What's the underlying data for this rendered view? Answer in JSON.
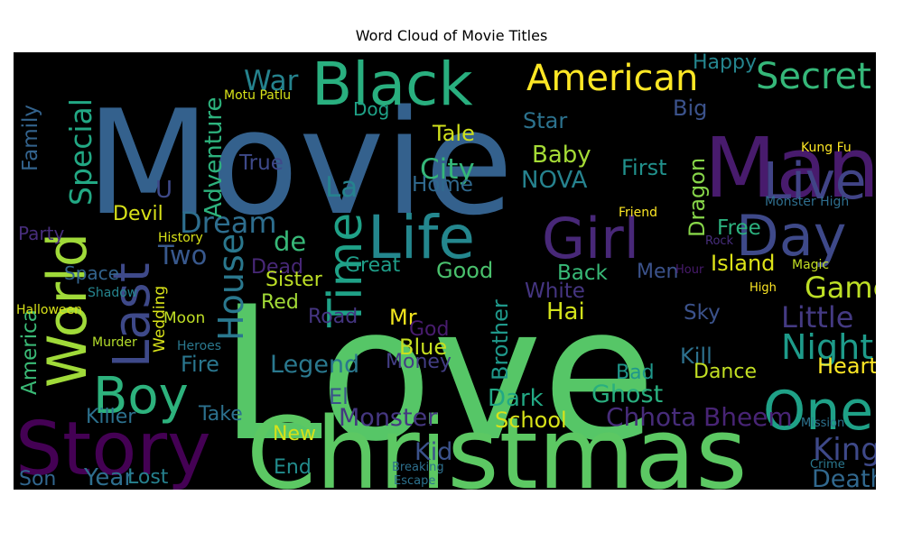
{
  "chart_data": {
    "type": "wordcloud",
    "title": "Word Cloud of Movie Titles",
    "background": "#000000",
    "words": [
      {
        "text": "Love",
        "weight": 100,
        "color": "#56c667"
      },
      {
        "text": "Movie",
        "weight": 96,
        "color": "#34618d"
      },
      {
        "text": "Christmas",
        "weight": 70,
        "color": "#5cc863"
      },
      {
        "text": "Man",
        "weight": 54,
        "color": "#481b6d"
      },
      {
        "text": "Story",
        "weight": 50,
        "color": "#440154"
      },
      {
        "text": "Black",
        "weight": 38,
        "color": "#29af7f"
      },
      {
        "text": "Life",
        "weight": 38,
        "color": "#24878e"
      },
      {
        "text": "Girl",
        "weight": 36,
        "color": "#482878"
      },
      {
        "text": "Day",
        "weight": 36,
        "color": "#3e4989"
      },
      {
        "text": "World",
        "weight": 35,
        "color": "#a0da39"
      },
      {
        "text": "One",
        "weight": 35,
        "color": "#1fa187"
      },
      {
        "text": "Last",
        "weight": 32,
        "color": "#3e4989"
      },
      {
        "text": "Boy",
        "weight": 32,
        "color": "#2db27d"
      },
      {
        "text": "Live",
        "weight": 32,
        "color": "#414487"
      },
      {
        "text": "Time",
        "weight": 30,
        "color": "#1fa187"
      },
      {
        "text": "American",
        "weight": 24,
        "color": "#fde725"
      },
      {
        "text": "Secret",
        "weight": 24,
        "color": "#35b779"
      },
      {
        "text": "House",
        "weight": 22,
        "color": "#2a788e"
      },
      {
        "text": "Night",
        "weight": 22,
        "color": "#1e9b8a"
      },
      {
        "text": "King",
        "weight": 20,
        "color": "#3e4989"
      },
      {
        "text": "Special",
        "weight": 19,
        "color": "#22a884"
      },
      {
        "text": "Dream",
        "weight": 19,
        "color": "#2e6e8e"
      },
      {
        "text": "Little",
        "weight": 19,
        "color": "#443a83"
      },
      {
        "text": "Game",
        "weight": 19,
        "color": "#bddf26"
      },
      {
        "text": "City",
        "weight": 18,
        "color": "#35b779"
      },
      {
        "text": "War",
        "weight": 18,
        "color": "#25838e"
      },
      {
        "text": "La",
        "weight": 18,
        "color": "#26828e"
      },
      {
        "text": "Death",
        "weight": 17,
        "color": "#31688e"
      },
      {
        "text": "de",
        "weight": 17,
        "color": "#37b878"
      },
      {
        "text": "Two",
        "weight": 17,
        "color": "#38588c"
      },
      {
        "text": "Chhota",
        "weight": 17,
        "color": "#472c7a"
      },
      {
        "text": "Bheem",
        "weight": 17,
        "color": "#482475"
      },
      {
        "text": "Legend",
        "weight": 16,
        "color": "#2a788e"
      },
      {
        "text": "Ghost",
        "weight": 16,
        "color": "#29af7f"
      },
      {
        "text": "Monster",
        "weight": 16,
        "color": "#453781"
      },
      {
        "text": "Kid",
        "weight": 16,
        "color": "#3b528b"
      },
      {
        "text": "Adventure",
        "weight": 15,
        "color": "#2db27d"
      },
      {
        "text": "Baby",
        "weight": 15,
        "color": "#a5db36"
      },
      {
        "text": "NOVA",
        "weight": 15,
        "color": "#26828e"
      },
      {
        "text": "Dark",
        "weight": 15,
        "color": "#22a884"
      },
      {
        "text": "Hai",
        "weight": 15,
        "color": "#d2e21b"
      },
      {
        "text": "Year",
        "weight": 15,
        "color": "#2e6e8e"
      },
      {
        "text": "Heart",
        "weight": 14,
        "color": "#fde725"
      },
      {
        "text": "Star",
        "weight": 14,
        "color": "#2c728e"
      },
      {
        "text": "Tale",
        "weight": 14,
        "color": "#d0e11c"
      },
      {
        "text": "First",
        "weight": 14,
        "color": "#21918c"
      },
      {
        "text": "Island",
        "weight": 14,
        "color": "#dde318"
      },
      {
        "text": "Blue",
        "weight": 14,
        "color": "#c8e020"
      },
      {
        "text": "School",
        "weight": 14,
        "color": "#d8e219"
      },
      {
        "text": "Dragon",
        "weight": 14,
        "color": "#87d549"
      },
      {
        "text": "Good",
        "weight": 14,
        "color": "#4ac16d"
      },
      {
        "text": "Fire",
        "weight": 14,
        "color": "#2a768e"
      },
      {
        "text": "Kill",
        "weight": 14,
        "color": "#2d718e"
      },
      {
        "text": "Mr",
        "weight": 14,
        "color": "#f1e51d"
      },
      {
        "text": "Brother",
        "weight": 14,
        "color": "#1f988b"
      },
      {
        "text": "Big",
        "weight": 14,
        "color": "#3b528b"
      },
      {
        "text": "Family",
        "weight": 13,
        "color": "#33638d"
      },
      {
        "text": "America",
        "weight": 13,
        "color": "#3aba76"
      },
      {
        "text": "Back",
        "weight": 13,
        "color": "#38b977"
      },
      {
        "text": "White",
        "weight": 13,
        "color": "#453581"
      },
      {
        "text": "Sky",
        "weight": 13,
        "color": "#3b528b"
      },
      {
        "text": "Free",
        "weight": 13,
        "color": "#2cb17e"
      },
      {
        "text": "True",
        "weight": 13,
        "color": "#3e4989"
      },
      {
        "text": "Home",
        "weight": 12,
        "color": "#30698e"
      },
      {
        "text": "Devil",
        "weight": 12,
        "color": "#d8e219"
      },
      {
        "text": "Dead",
        "weight": 12,
        "color": "#482878"
      },
      {
        "text": "Great",
        "weight": 12,
        "color": "#1f9e89"
      },
      {
        "text": "Take",
        "weight": 12,
        "color": "#2c718e"
      },
      {
        "text": "Men",
        "weight": 12,
        "color": "#3b528b"
      },
      {
        "text": "New",
        "weight": 12,
        "color": "#d5e21a"
      },
      {
        "text": "End",
        "weight": 12,
        "color": "#228c8d"
      },
      {
        "text": "Bad",
        "weight": 12,
        "color": "#1f978b"
      },
      {
        "text": "Dance",
        "weight": 12,
        "color": "#c2df23"
      },
      {
        "text": "Road",
        "weight": 12,
        "color": "#453581"
      },
      {
        "text": "Sister",
        "weight": 12,
        "color": "#bddf26"
      },
      {
        "text": "Red",
        "weight": 12,
        "color": "#a2da37"
      },
      {
        "text": "Happy",
        "weight": 12,
        "color": "#25858e"
      },
      {
        "text": "Killer",
        "weight": 12,
        "color": "#2c718e"
      },
      {
        "text": "Money",
        "weight": 12,
        "color": "#433e85"
      },
      {
        "text": "God",
        "weight": 12,
        "color": "#481c6e"
      },
      {
        "text": "Son",
        "weight": 12,
        "color": "#31668e"
      },
      {
        "text": "Lost",
        "weight": 12,
        "color": "#26818e"
      },
      {
        "text": "Party",
        "weight": 11,
        "color": "#472d7b"
      },
      {
        "text": "Space",
        "weight": 11,
        "color": "#33638d"
      },
      {
        "text": "Dog",
        "weight": 11,
        "color": "#1fa287"
      },
      {
        "text": "Moon",
        "weight": 10,
        "color": "#c0df25"
      },
      {
        "text": "Wedding",
        "weight": 10,
        "color": "#d8e219"
      },
      {
        "text": "El",
        "weight": 14,
        "color": "#3b528b"
      },
      {
        "text": "U",
        "weight": 14,
        "color": "#3e4989"
      },
      {
        "text": "Kung Fu",
        "weight": 10,
        "color": "#fde725"
      },
      {
        "text": "Murder",
        "weight": 9,
        "color": "#b5de2b"
      },
      {
        "text": "Halloween",
        "weight": 9,
        "color": "#d8e219"
      },
      {
        "text": "History",
        "weight": 9,
        "color": "#d8e219"
      },
      {
        "text": "Shadow",
        "weight": 9,
        "color": "#25848e"
      },
      {
        "text": "Monster High",
        "weight": 9,
        "color": "#2e6e8e"
      },
      {
        "text": "Heroes",
        "weight": 9,
        "color": "#2a788e"
      },
      {
        "text": "Motu Patlu",
        "weight": 9,
        "color": "#d8e219"
      },
      {
        "text": "Magic",
        "weight": 9,
        "color": "#c2df23"
      },
      {
        "text": "Friend",
        "weight": 9,
        "color": "#fde725"
      },
      {
        "text": "Hour",
        "weight": 8,
        "color": "#481b6d"
      },
      {
        "text": "Rock",
        "weight": 8,
        "color": "#472e7c"
      },
      {
        "text": "High",
        "weight": 8,
        "color": "#fde725"
      },
      {
        "text": "Crime",
        "weight": 8,
        "color": "#2a788e"
      },
      {
        "text": "Mission",
        "weight": 8,
        "color": "#2c728e"
      },
      {
        "text": "Breaking",
        "weight": 8,
        "color": "#2d708e"
      },
      {
        "text": "Escape",
        "weight": 8,
        "color": "#2c728e"
      }
    ]
  }
}
